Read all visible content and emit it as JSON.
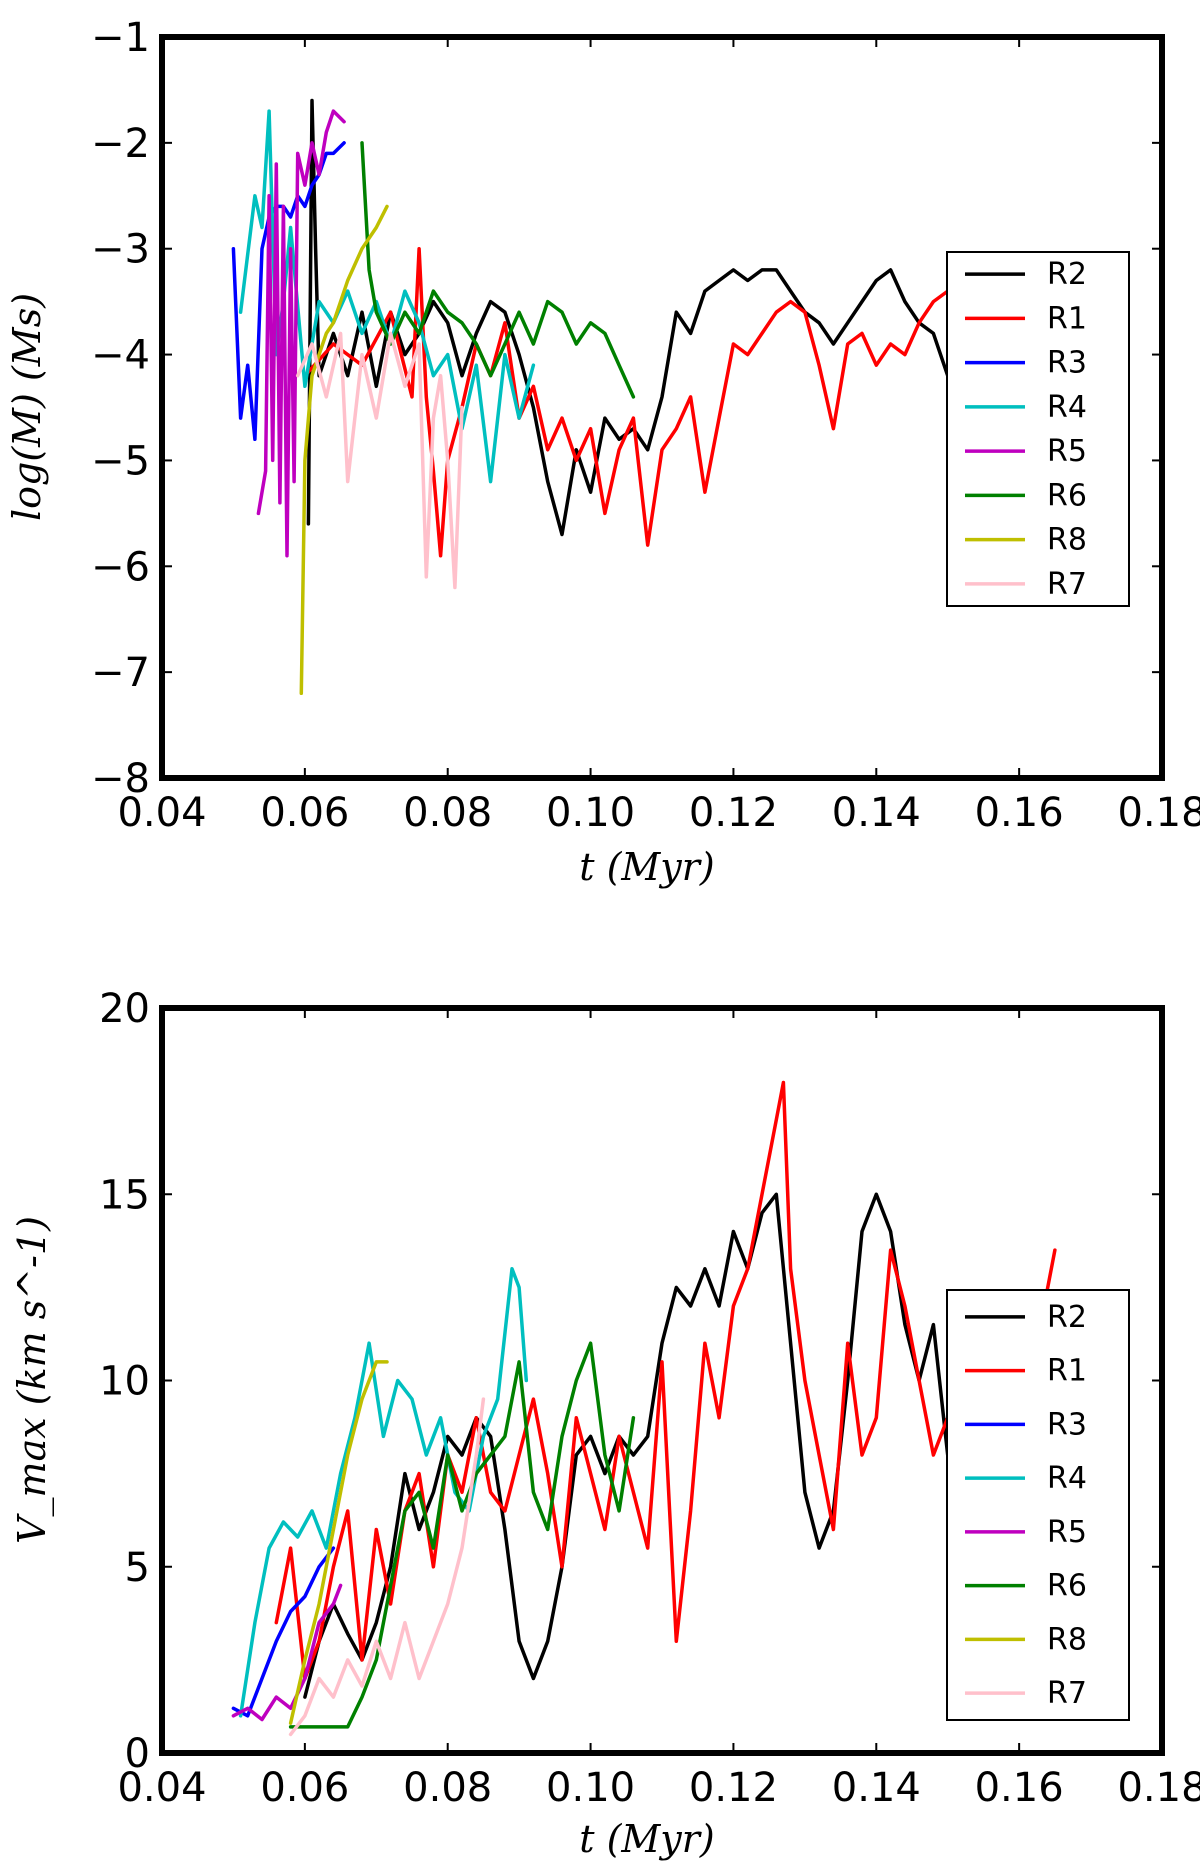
{
  "figure": {
    "series_colors": {
      "R1": "#ff0000",
      "R2": "#000000",
      "R3": "#0000ff",
      "R4": "#00bfbf",
      "R5": "#bf00bf",
      "R6": "#008000",
      "R7": "#ffc0cb",
      "R8": "#bfbf00"
    },
    "legend_order": [
      "R2",
      "R1",
      "R3",
      "R4",
      "R5",
      "R6",
      "R8",
      "R7"
    ]
  },
  "chart_data": [
    {
      "type": "line",
      "title": "",
      "xlabel": "t (Myr)",
      "ylabel": "log(M) (Ms)",
      "xlim": [
        0.04,
        0.18
      ],
      "ylim": [
        -8,
        -1
      ],
      "xticks": [
        "0.04",
        "0.06",
        "0.08",
        "0.10",
        "0.12",
        "0.14",
        "0.16",
        "0.18"
      ],
      "yticks": [
        "−8",
        "−7",
        "−6",
        "−5",
        "−4",
        "−3",
        "−2",
        "−1"
      ],
      "xtick_values": [
        0.04,
        0.06,
        0.08,
        0.1,
        0.12,
        0.14,
        0.16,
        0.18
      ],
      "ytick_values": [
        -8,
        -7,
        -6,
        -5,
        -4,
        -3,
        -2,
        -1
      ],
      "legend_loc": "center-right",
      "series": [
        {
          "name": "R2",
          "x": [
            0.0605,
            0.061,
            0.0615,
            0.062,
            0.064,
            0.066,
            0.068,
            0.07,
            0.072,
            0.074,
            0.076,
            0.078,
            0.08,
            0.082,
            0.084,
            0.086,
            0.088,
            0.09,
            0.092,
            0.094,
            0.096,
            0.098,
            0.1,
            0.102,
            0.104,
            0.106,
            0.108,
            0.11,
            0.112,
            0.114,
            0.116,
            0.118,
            0.12,
            0.122,
            0.124,
            0.126,
            0.128,
            0.13,
            0.132,
            0.134,
            0.136,
            0.138,
            0.14,
            0.142,
            0.144,
            0.146,
            0.148,
            0.15,
            0.152
          ],
          "y": [
            -5.6,
            -1.6,
            -3.0,
            -4.2,
            -3.8,
            -4.2,
            -3.6,
            -4.3,
            -3.6,
            -4.0,
            -3.8,
            -3.5,
            -3.7,
            -4.2,
            -3.8,
            -3.5,
            -3.6,
            -4.0,
            -4.5,
            -5.2,
            -5.7,
            -4.9,
            -5.3,
            -4.6,
            -4.8,
            -4.7,
            -4.9,
            -4.4,
            -3.6,
            -3.8,
            -3.4,
            -3.3,
            -3.2,
            -3.3,
            -3.2,
            -3.2,
            -3.4,
            -3.6,
            -3.7,
            -3.9,
            -3.7,
            -3.5,
            -3.3,
            -3.2,
            -3.5,
            -3.7,
            -3.8,
            -4.2,
            -4.4
          ]
        },
        {
          "name": "R1",
          "x": [
            0.06,
            0.064,
            0.068,
            0.072,
            0.075,
            0.076,
            0.077,
            0.078,
            0.079,
            0.08,
            0.082,
            0.084,
            0.086,
            0.088,
            0.09,
            0.092,
            0.094,
            0.096,
            0.098,
            0.1,
            0.102,
            0.104,
            0.106,
            0.108,
            0.11,
            0.112,
            0.114,
            0.116,
            0.118,
            0.12,
            0.122,
            0.124,
            0.126,
            0.128,
            0.13,
            0.132,
            0.134,
            0.136,
            0.138,
            0.14,
            0.142,
            0.144,
            0.146,
            0.148,
            0.15,
            0.152,
            0.154
          ],
          "y": [
            -4.2,
            -3.9,
            -4.1,
            -3.6,
            -4.4,
            -3.0,
            -4.4,
            -5.1,
            -5.9,
            -5.0,
            -4.5,
            -3.9,
            -4.2,
            -3.7,
            -4.6,
            -4.3,
            -4.9,
            -4.6,
            -5.0,
            -4.7,
            -5.5,
            -4.9,
            -4.6,
            -5.8,
            -4.9,
            -4.7,
            -4.4,
            -5.3,
            -4.6,
            -3.9,
            -4.0,
            -3.8,
            -3.6,
            -3.5,
            -3.6,
            -4.1,
            -4.7,
            -3.9,
            -3.8,
            -4.1,
            -3.9,
            -4.0,
            -3.7,
            -3.5,
            -3.4,
            -3.5,
            -3.6
          ]
        },
        {
          "name": "R3",
          "x": [
            0.05,
            0.051,
            0.052,
            0.053,
            0.054,
            0.055,
            0.056,
            0.057,
            0.058,
            0.059,
            0.06,
            0.061,
            0.062,
            0.063,
            0.064,
            0.0655
          ],
          "y": [
            -3.0,
            -4.6,
            -4.1,
            -4.8,
            -3.0,
            -2.7,
            -2.6,
            -2.6,
            -2.7,
            -2.5,
            -2.6,
            -2.4,
            -2.3,
            -2.1,
            -2.1,
            -2.0
          ]
        },
        {
          "name": "R4",
          "x": [
            0.051,
            0.053,
            0.054,
            0.055,
            0.056,
            0.057,
            0.058,
            0.06,
            0.062,
            0.064,
            0.066,
            0.068,
            0.07,
            0.072,
            0.074,
            0.076,
            0.078,
            0.08,
            0.082,
            0.084,
            0.086,
            0.088,
            0.09,
            0.092
          ],
          "y": [
            -3.6,
            -2.5,
            -2.8,
            -1.7,
            -4.0,
            -3.5,
            -2.8,
            -4.3,
            -3.5,
            -3.7,
            -3.4,
            -3.8,
            -3.5,
            -3.9,
            -3.4,
            -3.7,
            -4.2,
            -4.0,
            -4.7,
            -4.1,
            -5.2,
            -4.0,
            -4.6,
            -4.1
          ]
        },
        {
          "name": "R5",
          "x": [
            0.0535,
            0.0545,
            0.055,
            0.0555,
            0.056,
            0.0565,
            0.057,
            0.0575,
            0.058,
            0.0585,
            0.059,
            0.06,
            0.061,
            0.062,
            0.063,
            0.064,
            0.0655
          ],
          "y": [
            -5.5,
            -5.1,
            -2.5,
            -5.0,
            -2.2,
            -5.4,
            -2.6,
            -5.9,
            -3.0,
            -5.2,
            -2.1,
            -2.4,
            -2.0,
            -2.3,
            -1.9,
            -1.7,
            -1.8
          ]
        },
        {
          "name": "R6",
          "x": [
            0.068,
            0.069,
            0.07,
            0.072,
            0.074,
            0.076,
            0.078,
            0.08,
            0.082,
            0.084,
            0.086,
            0.088,
            0.09,
            0.092,
            0.094,
            0.096,
            0.098,
            0.1,
            0.102,
            0.104,
            0.106
          ],
          "y": [
            -2.0,
            -3.2,
            -3.6,
            -3.9,
            -3.6,
            -3.8,
            -3.4,
            -3.6,
            -3.7,
            -3.9,
            -4.2,
            -3.9,
            -3.6,
            -3.9,
            -3.5,
            -3.6,
            -3.9,
            -3.7,
            -3.8,
            -4.1,
            -4.4
          ]
        },
        {
          "name": "R8",
          "x": [
            0.0595,
            0.06,
            0.061,
            0.062,
            0.063,
            0.064,
            0.065,
            0.066,
            0.068,
            0.07,
            0.0715
          ],
          "y": [
            -7.2,
            -5.0,
            -4.2,
            -4.0,
            -3.8,
            -3.7,
            -3.5,
            -3.3,
            -3.0,
            -2.8,
            -2.6
          ]
        },
        {
          "name": "R7",
          "x": [
            0.059,
            0.061,
            0.063,
            0.065,
            0.066,
            0.068,
            0.07,
            0.072,
            0.074,
            0.076,
            0.077,
            0.078,
            0.079,
            0.08,
            0.081,
            0.082
          ],
          "y": [
            -4.2,
            -3.9,
            -4.4,
            -3.8,
            -5.2,
            -4.0,
            -4.6,
            -3.8,
            -4.3,
            -3.9,
            -6.1,
            -4.6,
            -4.2,
            -5.0,
            -6.2,
            -4.5
          ]
        }
      ]
    },
    {
      "type": "line",
      "title": "",
      "xlabel": "t (Myr)",
      "ylabel": "V_max (km s^-1)",
      "xlim": [
        0.04,
        0.18
      ],
      "ylim": [
        0,
        20
      ],
      "xticks": [
        "0.04",
        "0.06",
        "0.08",
        "0.10",
        "0.12",
        "0.14",
        "0.16",
        "0.18"
      ],
      "yticks": [
        "0",
        "5",
        "10",
        "15",
        "20"
      ],
      "xtick_values": [
        0.04,
        0.06,
        0.08,
        0.1,
        0.12,
        0.14,
        0.16,
        0.18
      ],
      "ytick_values": [
        0,
        5,
        10,
        15,
        20
      ],
      "legend_loc": "center-right",
      "series": [
        {
          "name": "R2",
          "x": [
            0.06,
            0.062,
            0.064,
            0.066,
            0.068,
            0.07,
            0.072,
            0.074,
            0.076,
            0.078,
            0.08,
            0.082,
            0.084,
            0.086,
            0.088,
            0.09,
            0.092,
            0.094,
            0.096,
            0.098,
            0.1,
            0.102,
            0.104,
            0.106,
            0.108,
            0.11,
            0.112,
            0.114,
            0.116,
            0.118,
            0.12,
            0.122,
            0.124,
            0.126,
            0.128,
            0.13,
            0.132,
            0.134,
            0.136,
            0.138,
            0.14,
            0.142,
            0.144,
            0.146,
            0.148,
            0.15,
            0.152
          ],
          "y": [
            1.5,
            3.0,
            4.0,
            3.2,
            2.5,
            3.5,
            5.0,
            7.5,
            6.0,
            7.0,
            8.5,
            8.0,
            9.0,
            8.5,
            6.0,
            3.0,
            2.0,
            3.0,
            5.0,
            8.0,
            8.5,
            7.5,
            8.5,
            8.0,
            8.5,
            11.0,
            12.5,
            12.0,
            13.0,
            12.0,
            14.0,
            13.0,
            14.5,
            15.0,
            11.0,
            7.0,
            5.5,
            6.5,
            10.0,
            14.0,
            15.0,
            14.0,
            11.5,
            10.0,
            11.5,
            8.0,
            9.0
          ]
        },
        {
          "name": "R1",
          "x": [
            0.056,
            0.058,
            0.06,
            0.062,
            0.064,
            0.066,
            0.068,
            0.07,
            0.072,
            0.074,
            0.076,
            0.078,
            0.08,
            0.082,
            0.084,
            0.086,
            0.088,
            0.09,
            0.092,
            0.094,
            0.096,
            0.098,
            0.1,
            0.102,
            0.104,
            0.106,
            0.108,
            0.11,
            0.112,
            0.114,
            0.116,
            0.118,
            0.12,
            0.122,
            0.124,
            0.126,
            0.127,
            0.128,
            0.13,
            0.132,
            0.134,
            0.136,
            0.138,
            0.14,
            0.142,
            0.144,
            0.146,
            0.148,
            0.15,
            0.152
          ],
          "y": [
            3.5,
            5.5,
            2.0,
            3.0,
            5.0,
            6.5,
            2.5,
            6.0,
            4.0,
            6.5,
            7.5,
            5.0,
            8.0,
            7.0,
            9.0,
            7.0,
            6.5,
            8.0,
            9.5,
            7.5,
            5.0,
            9.0,
            7.5,
            6.0,
            8.5,
            7.0,
            5.5,
            10.5,
            3.0,
            6.5,
            11.0,
            9.0,
            12.0,
            13.0,
            15.0,
            17.0,
            18.0,
            13.0,
            10.0,
            8.0,
            6.0,
            11.0,
            8.0,
            9.0,
            13.5,
            12.0,
            10.0,
            8.0,
            9.0,
            8.5
          ]
        },
        {
          "name": "R1-tail",
          "legend": false,
          "color_of": "R1",
          "x": [
            0.163,
            0.165
          ],
          "y": [
            11.5,
            13.5
          ]
        },
        {
          "name": "R3",
          "x": [
            0.05,
            0.052,
            0.054,
            0.056,
            0.058,
            0.06,
            0.062,
            0.064
          ],
          "y": [
            1.2,
            1.0,
            2.0,
            3.0,
            3.8,
            4.2,
            5.0,
            5.5
          ]
        },
        {
          "name": "R4",
          "x": [
            0.051,
            0.053,
            0.055,
            0.057,
            0.059,
            0.061,
            0.063,
            0.065,
            0.067,
            0.069,
            0.071,
            0.073,
            0.075,
            0.077,
            0.079,
            0.081,
            0.083,
            0.085,
            0.087,
            0.089,
            0.09,
            0.091
          ],
          "y": [
            1.0,
            3.5,
            5.5,
            6.2,
            5.8,
            6.5,
            5.5,
            7.5,
            9.0,
            11.0,
            8.5,
            10.0,
            9.5,
            8.0,
            9.0,
            7.0,
            6.5,
            8.5,
            9.5,
            13.0,
            12.5,
            10.0
          ]
        },
        {
          "name": "R5",
          "x": [
            0.05,
            0.052,
            0.054,
            0.056,
            0.058,
            0.06,
            0.062,
            0.064,
            0.065
          ],
          "y": [
            1.0,
            1.2,
            0.9,
            1.5,
            1.2,
            2.0,
            3.5,
            4.0,
            4.5
          ]
        },
        {
          "name": "R6",
          "x": [
            0.058,
            0.066,
            0.068,
            0.07,
            0.072,
            0.074,
            0.076,
            0.078,
            0.08,
            0.082,
            0.084,
            0.086,
            0.088,
            0.09,
            0.092,
            0.094,
            0.096,
            0.098,
            0.1,
            0.102,
            0.104,
            0.106
          ],
          "y": [
            0.7,
            0.7,
            1.5,
            2.5,
            4.5,
            6.5,
            7.0,
            5.5,
            8.0,
            6.5,
            7.5,
            8.0,
            8.5,
            10.5,
            7.0,
            6.0,
            8.5,
            10.0,
            11.0,
            8.0,
            6.5,
            9.0
          ]
        },
        {
          "name": "R8",
          "x": [
            0.058,
            0.06,
            0.062,
            0.064,
            0.066,
            0.068,
            0.07,
            0.0715
          ],
          "y": [
            0.8,
            2.5,
            4.0,
            6.0,
            8.0,
            9.5,
            10.5,
            10.5
          ]
        },
        {
          "name": "R7",
          "x": [
            0.058,
            0.06,
            0.062,
            0.064,
            0.066,
            0.068,
            0.07,
            0.072,
            0.074,
            0.076,
            0.078,
            0.08,
            0.082,
            0.084,
            0.085
          ],
          "y": [
            0.5,
            1.0,
            2.0,
            1.5,
            2.5,
            1.8,
            3.0,
            2.0,
            3.5,
            2.0,
            3.0,
            4.0,
            5.5,
            8.0,
            9.5
          ]
        }
      ]
    }
  ]
}
